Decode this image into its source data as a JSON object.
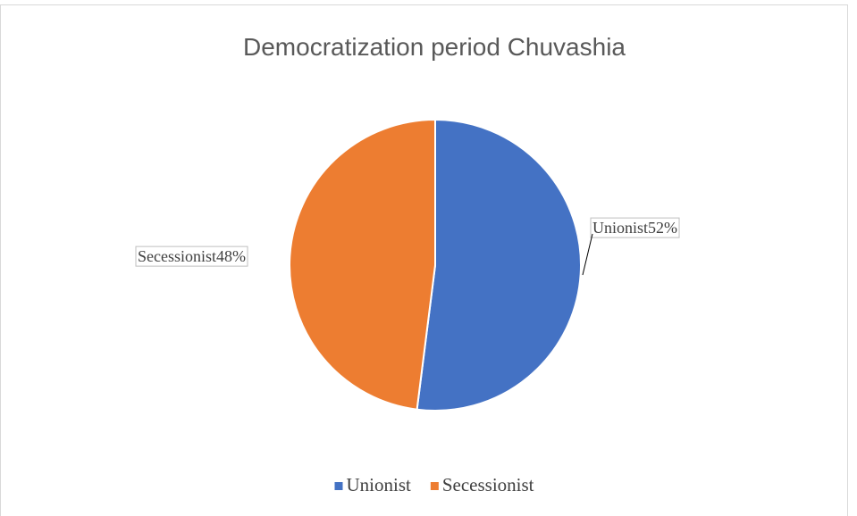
{
  "chart_data": {
    "type": "pie",
    "title": "Democratization period Chuvashia",
    "categories": [
      "Unionist",
      "Secessionist"
    ],
    "values": [
      52,
      48
    ],
    "value_labels": [
      "52%",
      "48%"
    ],
    "colors": [
      "#4472c4",
      "#ed7d31"
    ],
    "legend": "bottom"
  }
}
